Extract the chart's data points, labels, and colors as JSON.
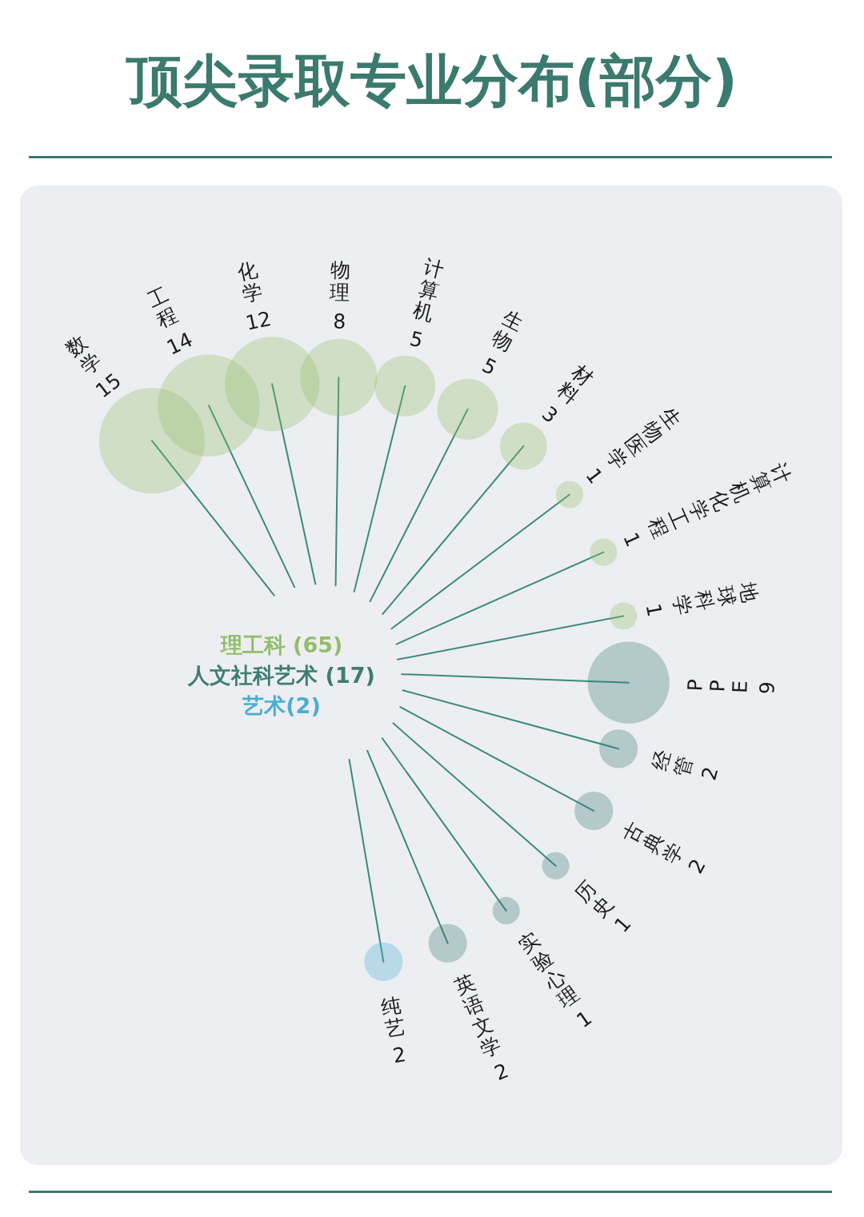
{
  "chart_data": {
    "type": "other",
    "title": "顶尖录取专业分布(部分)",
    "categories": [
      "数学",
      "工程",
      "化学",
      "物理",
      "计算机",
      "生物",
      "材料",
      "生物医学",
      "计算机化学工程",
      "地球科学",
      "PPE",
      "经管",
      "古典学",
      "历史",
      "实验心理",
      "英语文学",
      "纯艺"
    ],
    "series": [
      {
        "name": "理工科 (65)",
        "color": "#92bd68",
        "values": [
          15,
          14,
          12,
          8,
          5,
          5,
          3,
          1,
          1,
          1,
          null,
          null,
          null,
          null,
          null,
          null,
          null
        ]
      },
      {
        "name": "人文社科艺术 (17)",
        "color": "#3d7d72",
        "values": [
          null,
          null,
          null,
          null,
          null,
          null,
          null,
          null,
          null,
          null,
          9,
          2,
          2,
          1,
          1,
          2,
          null
        ]
      },
      {
        "name": "艺术(2)",
        "color": "#4aaed0",
        "values": [
          null,
          null,
          null,
          null,
          null,
          null,
          null,
          null,
          null,
          null,
          null,
          null,
          null,
          null,
          null,
          null,
          2
        ]
      }
    ],
    "data_labels": true
  }
}
